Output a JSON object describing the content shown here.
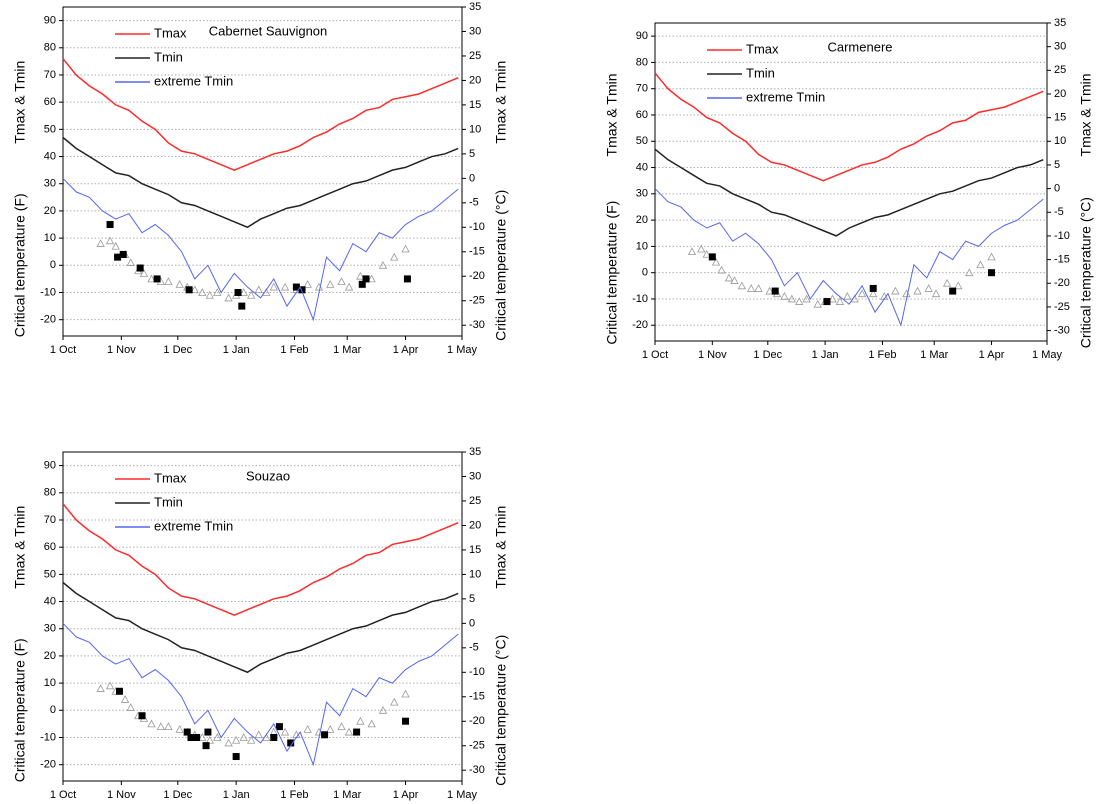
{
  "chart_data": [
    {
      "type": "line",
      "title": "Cabernet Sauvignon",
      "y_label": "Critical temperature (F)",
      "y_label_upper": "Tmax & Tmin",
      "y2_label": "Critical temperature (°C)",
      "y2_label_upper": "Tmax & Tmin",
      "xlim": [
        0,
        212
      ],
      "xticks": [
        {
          "value": 0,
          "label": "1 Oct"
        },
        {
          "value": 31,
          "label": "1 Nov"
        },
        {
          "value": 61,
          "label": "1 Dec"
        },
        {
          "value": 92,
          "label": "1 Jan"
        },
        {
          "value": 123,
          "label": "1 Feb"
        },
        {
          "value": 151,
          "label": "1 Mar"
        },
        {
          "value": 182,
          "label": "1 Apr"
        },
        {
          "value": 212,
          "label": "1 May"
        }
      ],
      "ylim": [
        -26,
        95
      ],
      "yticks": [
        -20,
        -10,
        0,
        10,
        20,
        30,
        40,
        50,
        60,
        70,
        80,
        90
      ],
      "y2lim": [
        -32.2,
        35
      ],
      "y2ticks": [
        -30,
        -25,
        -20,
        -15,
        -10,
        -5,
        0,
        5,
        10,
        15,
        20,
        25,
        30,
        35
      ],
      "grid": true,
      "x": [
        0,
        7,
        14,
        21,
        28,
        35,
        42,
        49,
        56,
        63,
        70,
        77,
        84,
        91,
        98,
        105,
        112,
        119,
        126,
        133,
        140,
        147,
        154,
        161,
        168,
        175,
        182,
        189,
        196,
        203,
        210
      ],
      "series": [
        {
          "name": "Tmax",
          "color": "#ff2a2a",
          "values": [
            76,
            70,
            66,
            63,
            59,
            57,
            53,
            50,
            45,
            42,
            41,
            39,
            37,
            35,
            37,
            39,
            41,
            42,
            44,
            47,
            49,
            52,
            54,
            57,
            58,
            61,
            62,
            63,
            65,
            67,
            69
          ]
        },
        {
          "name": "Tmin",
          "color": "#222222",
          "values": [
            47,
            43,
            40,
            37,
            34,
            33,
            30,
            28,
            26,
            23,
            22,
            20,
            18,
            16,
            14,
            17,
            19,
            21,
            22,
            24,
            26,
            28,
            30,
            31,
            33,
            35,
            36,
            38,
            40,
            41,
            43
          ]
        },
        {
          "name": "extreme Tmin",
          "color": "#5566ee",
          "values": [
            32,
            27,
            25,
            20,
            17,
            19,
            12,
            15,
            11,
            5,
            -5,
            0,
            -10,
            -3,
            -8,
            -12,
            -5,
            -15,
            -8,
            -20,
            3,
            -2,
            8,
            5,
            12,
            10,
            15,
            18,
            20,
            24,
            28
          ]
        }
      ],
      "points": [
        {
          "marker": "triangle",
          "color": "#999999",
          "x": [
            20,
            25,
            28,
            33,
            36,
            40,
            43,
            47,
            52,
            56,
            62,
            66,
            70,
            74,
            78,
            82,
            88,
            92,
            96,
            100,
            104,
            108,
            112,
            118,
            124,
            130,
            136,
            142,
            148,
            152,
            158,
            164,
            170,
            176,
            182
          ],
          "values": [
            8,
            9,
            7,
            4,
            1,
            -2,
            -3,
            -5,
            -6,
            -6,
            -7,
            -8,
            -9,
            -10,
            -11,
            -10,
            -12,
            -11,
            -10,
            -11,
            -9,
            -10,
            -8,
            -8,
            -9,
            -7,
            -8,
            -7,
            -6,
            -8,
            -4,
            -5,
            0,
            3,
            6
          ]
        },
        {
          "marker": "square",
          "color": "#000000",
          "x": [
            25,
            29,
            32,
            41,
            50,
            67,
            93,
            95,
            124,
            127,
            159,
            161,
            183
          ],
          "values": [
            15,
            3,
            4,
            -1,
            -5,
            -9,
            -10,
            -15,
            -8,
            -9,
            -7,
            -5,
            -5
          ]
        }
      ]
    },
    {
      "type": "line",
      "title": "Carmenere",
      "y_label": "Critical temperature (F)",
      "y_label_upper": "Tmax & Tmin",
      "y2_label": "Critical temperature (°C)",
      "y2_label_upper": "Tmax & Tmin",
      "xlim": [
        0,
        212
      ],
      "xticks": [
        {
          "value": 0,
          "label": "1 Oct"
        },
        {
          "value": 31,
          "label": "1 Nov"
        },
        {
          "value": 61,
          "label": "1 Dec"
        },
        {
          "value": 92,
          "label": "1 Jan"
        },
        {
          "value": 123,
          "label": "1 Feb"
        },
        {
          "value": 151,
          "label": "1 Mar"
        },
        {
          "value": 182,
          "label": "1 Apr"
        },
        {
          "value": 212,
          "label": "1 May"
        }
      ],
      "ylim": [
        -26,
        95
      ],
      "yticks": [
        -20,
        -10,
        0,
        10,
        20,
        30,
        40,
        50,
        60,
        70,
        80,
        90
      ],
      "y2lim": [
        -32.2,
        35
      ],
      "y2ticks": [
        -30,
        -25,
        -20,
        -15,
        -10,
        -5,
        0,
        5,
        10,
        15,
        20,
        25,
        30,
        35
      ],
      "grid": true,
      "x": [
        0,
        7,
        14,
        21,
        28,
        35,
        42,
        49,
        56,
        63,
        70,
        77,
        84,
        91,
        98,
        105,
        112,
        119,
        126,
        133,
        140,
        147,
        154,
        161,
        168,
        175,
        182,
        189,
        196,
        203,
        210
      ],
      "series": [
        {
          "name": "Tmax",
          "color": "#ff2a2a",
          "values": [
            76,
            70,
            66,
            63,
            59,
            57,
            53,
            50,
            45,
            42,
            41,
            39,
            37,
            35,
            37,
            39,
            41,
            42,
            44,
            47,
            49,
            52,
            54,
            57,
            58,
            61,
            62,
            63,
            65,
            67,
            69
          ]
        },
        {
          "name": "Tmin",
          "color": "#222222",
          "values": [
            47,
            43,
            40,
            37,
            34,
            33,
            30,
            28,
            26,
            23,
            22,
            20,
            18,
            16,
            14,
            17,
            19,
            21,
            22,
            24,
            26,
            28,
            30,
            31,
            33,
            35,
            36,
            38,
            40,
            41,
            43
          ]
        },
        {
          "name": "extreme Tmin",
          "color": "#5566ee",
          "values": [
            32,
            27,
            25,
            20,
            17,
            19,
            12,
            15,
            11,
            5,
            -5,
            0,
            -10,
            -3,
            -8,
            -12,
            -5,
            -15,
            -8,
            -20,
            3,
            -2,
            8,
            5,
            12,
            10,
            15,
            18,
            20,
            24,
            28
          ]
        }
      ],
      "points": [
        {
          "marker": "triangle",
          "color": "#999999",
          "x": [
            20,
            25,
            28,
            33,
            36,
            40,
            43,
            47,
            52,
            56,
            62,
            66,
            70,
            74,
            78,
            82,
            88,
            92,
            96,
            100,
            104,
            108,
            112,
            118,
            124,
            130,
            136,
            142,
            148,
            152,
            158,
            164,
            170,
            176,
            182
          ],
          "values": [
            8,
            9,
            7,
            4,
            1,
            -2,
            -3,
            -5,
            -6,
            -6,
            -7,
            -8,
            -9,
            -10,
            -11,
            -10,
            -12,
            -11,
            -10,
            -11,
            -9,
            -10,
            -8,
            -8,
            -9,
            -7,
            -8,
            -7,
            -6,
            -8,
            -4,
            -5,
            0,
            3,
            6
          ]
        },
        {
          "marker": "square",
          "color": "#000000",
          "x": [
            31,
            65,
            93,
            118,
            161,
            182
          ],
          "values": [
            6,
            -7,
            -11,
            -6,
            -7,
            0
          ]
        }
      ]
    },
    {
      "type": "line",
      "title": "Souzao",
      "y_label": "Critical temperature (F)",
      "y_label_upper": "Tmax & Tmin",
      "y2_label": "Critical temperature (°C)",
      "y2_label_upper": "Tmax & Tmin",
      "xlim": [
        0,
        212
      ],
      "xticks": [
        {
          "value": 0,
          "label": "1 Oct"
        },
        {
          "value": 31,
          "label": "1 Nov"
        },
        {
          "value": 61,
          "label": "1 Dec"
        },
        {
          "value": 92,
          "label": "1 Jan"
        },
        {
          "value": 123,
          "label": "1 Feb"
        },
        {
          "value": 151,
          "label": "1 Mar"
        },
        {
          "value": 182,
          "label": "1 Apr"
        },
        {
          "value": 212,
          "label": "1 May"
        }
      ],
      "ylim": [
        -26,
        95
      ],
      "yticks": [
        -20,
        -10,
        0,
        10,
        20,
        30,
        40,
        50,
        60,
        70,
        80,
        90
      ],
      "y2lim": [
        -32.2,
        35
      ],
      "y2ticks": [
        -30,
        -25,
        -20,
        -15,
        -10,
        -5,
        0,
        5,
        10,
        15,
        20,
        25,
        30,
        35
      ],
      "grid": true,
      "x": [
        0,
        7,
        14,
        21,
        28,
        35,
        42,
        49,
        56,
        63,
        70,
        77,
        84,
        91,
        98,
        105,
        112,
        119,
        126,
        133,
        140,
        147,
        154,
        161,
        168,
        175,
        182,
        189,
        196,
        203,
        210
      ],
      "series": [
        {
          "name": "Tmax",
          "color": "#ff2a2a",
          "values": [
            76,
            70,
            66,
            63,
            59,
            57,
            53,
            50,
            45,
            42,
            41,
            39,
            37,
            35,
            37,
            39,
            41,
            42,
            44,
            47,
            49,
            52,
            54,
            57,
            58,
            61,
            62,
            63,
            65,
            67,
            69
          ]
        },
        {
          "name": "Tmin",
          "color": "#222222",
          "values": [
            47,
            43,
            40,
            37,
            34,
            33,
            30,
            28,
            26,
            23,
            22,
            20,
            18,
            16,
            14,
            17,
            19,
            21,
            22,
            24,
            26,
            28,
            30,
            31,
            33,
            35,
            36,
            38,
            40,
            41,
            43
          ]
        },
        {
          "name": "extreme Tmin",
          "color": "#5566ee",
          "values": [
            32,
            27,
            25,
            20,
            17,
            19,
            12,
            15,
            11,
            5,
            -5,
            0,
            -10,
            -3,
            -8,
            -12,
            -5,
            -15,
            -8,
            -20,
            3,
            -2,
            8,
            5,
            12,
            10,
            15,
            18,
            20,
            24,
            28
          ]
        }
      ],
      "points": [
        {
          "marker": "triangle",
          "color": "#999999",
          "x": [
            20,
            25,
            28,
            33,
            36,
            40,
            43,
            47,
            52,
            56,
            62,
            66,
            70,
            74,
            78,
            82,
            88,
            92,
            96,
            100,
            104,
            108,
            112,
            118,
            124,
            130,
            136,
            142,
            148,
            152,
            158,
            164,
            170,
            176,
            182
          ],
          "values": [
            8,
            9,
            7,
            4,
            1,
            -2,
            -3,
            -5,
            -6,
            -6,
            -7,
            -8,
            -9,
            -10,
            -11,
            -10,
            -12,
            -11,
            -10,
            -11,
            -9,
            -10,
            -8,
            -8,
            -9,
            -7,
            -8,
            -7,
            -6,
            -8,
            -4,
            -5,
            0,
            3,
            6
          ]
        },
        {
          "marker": "square",
          "color": "#000000",
          "x": [
            30,
            42,
            66,
            68,
            71,
            76,
            77,
            92,
            112,
            115,
            121,
            139,
            156,
            182
          ],
          "values": [
            7,
            -2,
            -8,
            -10,
            -10,
            -13,
            -8,
            -17,
            -10,
            -6,
            -12,
            -9,
            -8,
            -4
          ]
        }
      ]
    }
  ]
}
